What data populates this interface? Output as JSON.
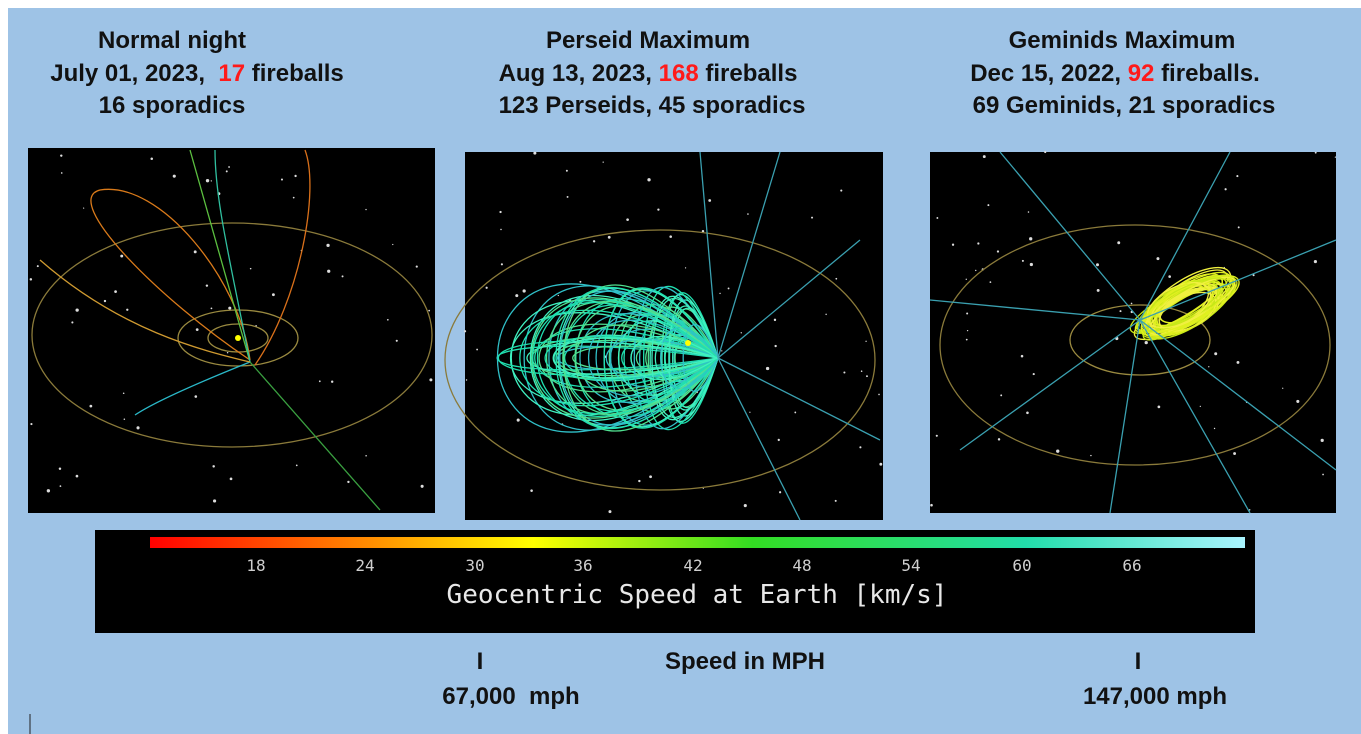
{
  "panels": [
    {
      "title": "Normal night",
      "date": "July 01, 2023,",
      "count": "17",
      "count_label": "fireballs",
      "detail": "16 sporadics"
    },
    {
      "title": "Perseid Maximum",
      "date": "Aug 13, 2023,",
      "count": "168",
      "count_label": "fireballs",
      "detail": "123 Perseids, 45 sporadics"
    },
    {
      "title": "Geminids Maximum",
      "date": "Dec 15, 2022,",
      "count": "92",
      "count_label": "fireballs.",
      "detail": "69 Geminids, 21 sporadics"
    }
  ],
  "colorbar": {
    "ticks": [
      "18",
      "24",
      "30",
      "36",
      "42",
      "48",
      "54",
      "60",
      "66"
    ],
    "label": "Geocentric Speed at Earth [km/s]"
  },
  "mph": {
    "title": "Speed in MPH",
    "low_marker": "I",
    "low": "67,000  mph",
    "high_marker": "I",
    "high": "147,000 mph"
  }
}
